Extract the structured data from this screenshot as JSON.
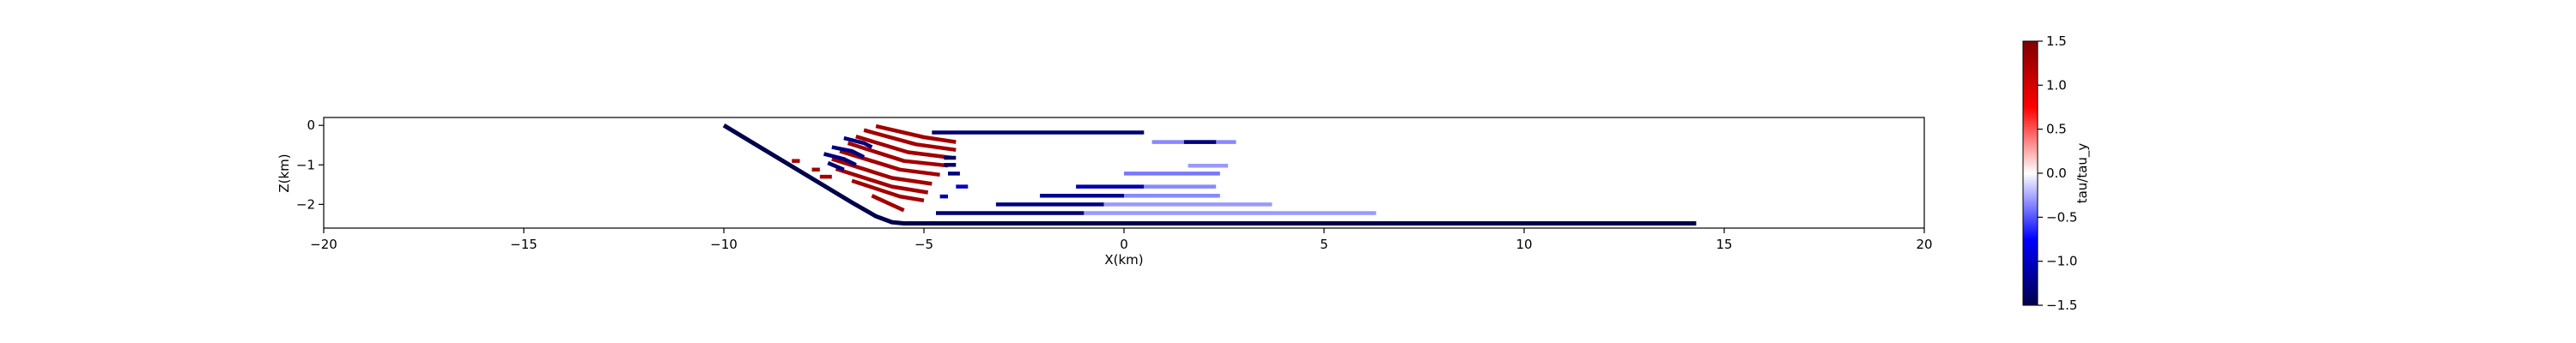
{
  "chart_data": {
    "type": "scatter",
    "title": "",
    "xlabel": "X(km)",
    "ylabel": "Z(km)",
    "xlim": [
      -20,
      20
    ],
    "ylim": [
      -2.6,
      0.2
    ],
    "xticks": [
      "−20",
      "−15",
      "−10",
      "−5",
      "0",
      "5",
      "10",
      "15",
      "20"
    ],
    "yticks": [
      "0",
      "−1",
      "−2"
    ],
    "grid": false,
    "colorbar": {
      "label": "tau/tau_y",
      "range": [
        -1.5,
        1.5
      ],
      "ticks": [
        "1.5",
        "1.0",
        "0.5",
        "0.0",
        "−0.5",
        "−1.0",
        "−1.5"
      ],
      "colormap": "seismic"
    },
    "series": [
      {
        "x": [
          -10.0,
          -6.8,
          -6.2,
          -5.8,
          -5.5,
          0.0,
          5.0,
          10.0,
          14.3
        ],
        "y": [
          0.0,
          -1.95,
          -2.3,
          -2.45,
          -2.48,
          -2.48,
          -2.48,
          -2.48,
          -2.48
        ],
        "value": -1.5
      },
      {
        "x": [
          -4.8,
          0.5
        ],
        "y": [
          -0.18,
          -0.18
        ],
        "value": -1.35
      },
      {
        "x": [
          0.7,
          2.8
        ],
        "y": [
          -0.42,
          -0.42
        ],
        "value": -0.35
      },
      {
        "x": [
          1.5,
          2.3
        ],
        "y": [
          -0.42,
          -0.42
        ],
        "value": -1.3
      },
      {
        "x": [
          1.6,
          2.6
        ],
        "y": [
          -1.02,
          -1.02
        ],
        "value": -0.3
      },
      {
        "x": [
          0.0,
          2.4
        ],
        "y": [
          -1.22,
          -1.22
        ],
        "value": -0.4
      },
      {
        "x": [
          -1.2,
          0.5
        ],
        "y": [
          -1.55,
          -1.55
        ],
        "value": -1.1
      },
      {
        "x": [
          0.5,
          2.3
        ],
        "y": [
          -1.55,
          -1.55
        ],
        "value": -0.35
      },
      {
        "x": [
          -2.1,
          0.0
        ],
        "y": [
          -1.78,
          -1.78
        ],
        "value": -1.2
      },
      {
        "x": [
          0.0,
          2.4
        ],
        "y": [
          -1.78,
          -1.78
        ],
        "value": -0.35
      },
      {
        "x": [
          -3.2,
          -0.5
        ],
        "y": [
          -2.0,
          -2.0
        ],
        "value": -1.3
      },
      {
        "x": [
          -0.5,
          3.7
        ],
        "y": [
          -2.0,
          -2.0
        ],
        "value": -0.3
      },
      {
        "x": [
          -4.7,
          -1.0
        ],
        "y": [
          -2.22,
          -2.22
        ],
        "value": -1.35
      },
      {
        "x": [
          -1.0,
          6.3
        ],
        "y": [
          -2.22,
          -2.22
        ],
        "value": -0.3
      },
      {
        "x": [
          -6.2,
          -5.0,
          -4.2
        ],
        "y": [
          -0.02,
          -0.3,
          -0.42
        ],
        "value": 1.3
      },
      {
        "x": [
          -6.5,
          -5.2,
          -4.2
        ],
        "y": [
          -0.12,
          -0.48,
          -0.62
        ],
        "value": 1.3
      },
      {
        "x": [
          -6.7,
          -5.4,
          -4.3
        ],
        "y": [
          -0.28,
          -0.68,
          -0.82
        ],
        "value": 1.3
      },
      {
        "x": [
          -6.9,
          -5.5,
          -4.4
        ],
        "y": [
          -0.45,
          -0.9,
          -1.02
        ],
        "value": 1.3
      },
      {
        "x": [
          -7.1,
          -5.6,
          -4.6
        ],
        "y": [
          -0.65,
          -1.12,
          -1.25
        ],
        "value": 1.3
      },
      {
        "x": [
          -7.3,
          -5.8,
          -4.8
        ],
        "y": [
          -0.85,
          -1.33,
          -1.48
        ],
        "value": 1.3
      },
      {
        "x": [
          -7.2,
          -5.8,
          -4.9
        ],
        "y": [
          -1.1,
          -1.55,
          -1.7
        ],
        "value": 1.3
      },
      {
        "x": [
          -6.8,
          -5.6,
          -5.0
        ],
        "y": [
          -1.4,
          -1.8,
          -1.9
        ],
        "value": 1.3
      },
      {
        "x": [
          -6.3,
          -5.5
        ],
        "y": [
          -1.78,
          -2.15
        ],
        "value": 1.3
      },
      {
        "x": [
          -7.0,
          -6.5,
          -6.3
        ],
        "y": [
          -0.32,
          -0.45,
          -0.55
        ],
        "value": -1.3
      },
      {
        "x": [
          -7.3,
          -6.8,
          -6.5
        ],
        "y": [
          -0.55,
          -0.65,
          -0.8
        ],
        "value": -1.3
      },
      {
        "x": [
          -7.5,
          -7.0,
          -6.7
        ],
        "y": [
          -0.72,
          -0.85,
          -1.0
        ],
        "value": -1.3
      },
      {
        "x": [
          -7.4,
          -7.0
        ],
        "y": [
          -0.95,
          -1.12
        ],
        "value": -1.3
      },
      {
        "x": [
          -4.5,
          -4.2
        ],
        "y": [
          -0.82,
          -0.82
        ],
        "value": -1.4
      },
      {
        "x": [
          -4.5,
          -4.2
        ],
        "y": [
          -1.0,
          -1.0
        ],
        "value": -1.4
      },
      {
        "x": [
          -4.4,
          -4.1
        ],
        "y": [
          -1.22,
          -1.22
        ],
        "value": -1.3
      },
      {
        "x": [
          -4.2,
          -3.9
        ],
        "y": [
          -1.55,
          -1.55
        ],
        "value": -1.0
      },
      {
        "x": [
          -4.6,
          -4.4
        ],
        "y": [
          -1.8,
          -1.8
        ],
        "value": -1.1
      },
      {
        "x": [
          -8.3,
          -8.1
        ],
        "y": [
          -0.9,
          -0.9
        ],
        "value": 1.3
      },
      {
        "x": [
          -7.8,
          -7.6
        ],
        "y": [
          -1.12,
          -1.12
        ],
        "value": 1.3
      },
      {
        "x": [
          -7.6,
          -7.3
        ],
        "y": [
          -1.3,
          -1.3
        ],
        "value": 1.3
      }
    ]
  }
}
